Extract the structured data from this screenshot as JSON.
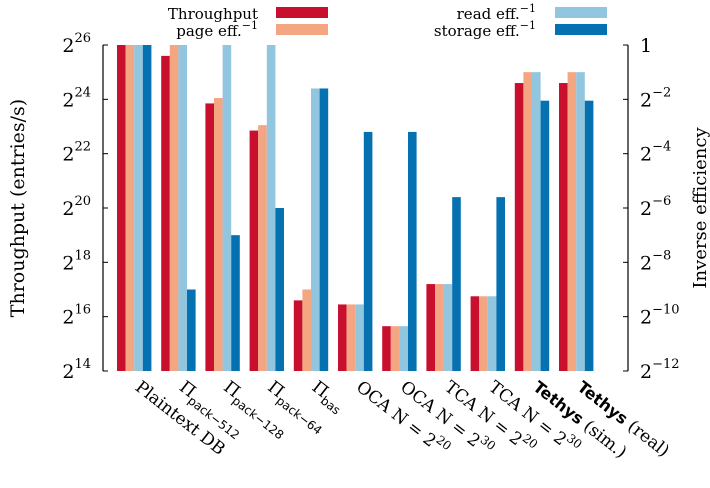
{
  "chart_data": {
    "type": "bar",
    "left_axis": {
      "label": "Throughput (entries/s)",
      "scale": "log2",
      "range_exp": [
        14,
        26
      ],
      "ticks": [
        {
          "base": "2",
          "exp": "14",
          "value_exp": 14
        },
        {
          "base": "2",
          "exp": "16",
          "value_exp": 16
        },
        {
          "base": "2",
          "exp": "18",
          "value_exp": 18
        },
        {
          "base": "2",
          "exp": "20",
          "value_exp": 20
        },
        {
          "base": "2",
          "exp": "22",
          "value_exp": 22
        },
        {
          "base": "2",
          "exp": "24",
          "value_exp": 24
        },
        {
          "base": "2",
          "exp": "26",
          "value_exp": 26
        }
      ]
    },
    "right_axis": {
      "label": "Inverse efficiency",
      "scale": "log2",
      "range_exp": [
        -12,
        0
      ],
      "ticks": [
        {
          "base": "1",
          "exp": "",
          "value_exp": 0
        },
        {
          "base": "2",
          "exp": "−2",
          "value_exp": -2
        },
        {
          "base": "2",
          "exp": "−4",
          "value_exp": -4
        },
        {
          "base": "2",
          "exp": "−6",
          "value_exp": -6
        },
        {
          "base": "2",
          "exp": "−8",
          "value_exp": -8
        },
        {
          "base": "2",
          "exp": "−10",
          "value_exp": -10
        },
        {
          "base": "2",
          "exp": "−12",
          "value_exp": -12
        }
      ]
    },
    "categories": [
      {
        "label": "Plaintext DB",
        "bold": false
      },
      {
        "label": "Π",
        "sub": "pack−512",
        "bold": false
      },
      {
        "label": "Π",
        "sub": "pack−128",
        "bold": false
      },
      {
        "label": "Π",
        "sub": "pack−64",
        "bold": false
      },
      {
        "label": "Π",
        "sub": "bas",
        "bold": false
      },
      {
        "label": "OCA N = 2",
        "sup": "20",
        "bold": false
      },
      {
        "label": "OCA N = 2",
        "sup": "30",
        "bold": false
      },
      {
        "label": "TCA N = 2",
        "sup": "20",
        "bold": false
      },
      {
        "label": "TCA N = 2",
        "sup": "30",
        "bold": false
      },
      {
        "label": "Tethys",
        "suffix": " (sim.)",
        "bold": true
      },
      {
        "label": "Tethys",
        "suffix": " (real)",
        "bold": true
      }
    ],
    "series": [
      {
        "name": "Throughput",
        "sup": "",
        "axis": "left",
        "color": "#c8102e",
        "values_exp": [
          26,
          25.6,
          23.85,
          22.85,
          16.6,
          16.45,
          15.65,
          17.2,
          16.75,
          24.6,
          24.6
        ]
      },
      {
        "name": "page eff.",
        "sup": "−1",
        "axis": "right",
        "color": "#f4a582",
        "values_exp": [
          0,
          0,
          -1.95,
          -2.95,
          -9,
          -9.55,
          -10.35,
          -8.8,
          -9.25,
          -1,
          -1
        ]
      },
      {
        "name": "read eff.",
        "sup": "−1",
        "axis": "right",
        "color": "#92c5de",
        "values_exp": [
          0,
          0,
          0,
          0,
          -1.6,
          -9.55,
          -10.35,
          -8.8,
          -9.25,
          -1,
          -1
        ]
      },
      {
        "name": "storage eff.",
        "sup": "−1",
        "axis": "right",
        "color": "#0571b0",
        "values_exp": [
          0,
          -9,
          -7,
          -6,
          -1.6,
          -3.2,
          -3.2,
          -5.6,
          -5.6,
          -2.05,
          -2.05
        ]
      }
    ]
  }
}
